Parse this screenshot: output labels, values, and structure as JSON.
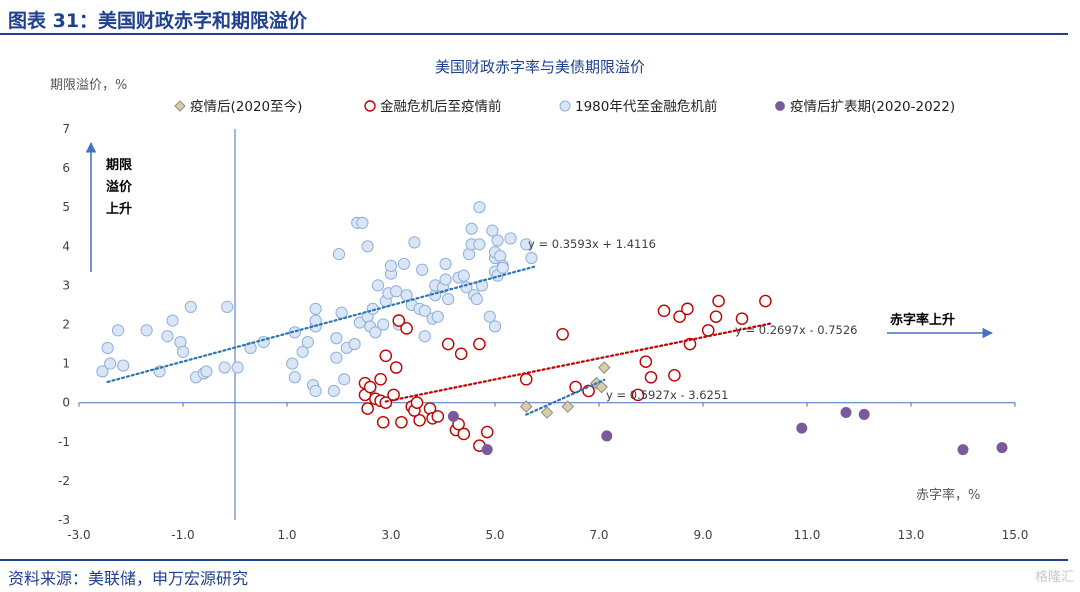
{
  "header_title": "图表 31：美国财政赤字和期限溢价",
  "source": "资料来源：美联储，申万宏源研究",
  "watermark": "格隆汇",
  "colors": {
    "brand": "#1f3f8f",
    "axis": "#4472c4",
    "blue_fill": "#dae6f6",
    "blue_stroke": "#8fb0dc",
    "red": "#c00000",
    "diamond_fill": "#d9cfa3",
    "diamond_stroke": "#8c8c8c",
    "purple": "#7b5a9c",
    "trend_blue": "#2e75b6",
    "trend_red": "#c00000"
  },
  "chart_data": {
    "type": "scatter",
    "title": "美国财政赤字率与美债期限溢价",
    "ylabel": "期限溢价，%",
    "xlabel": "赤字率，%",
    "xlim": [
      -3,
      15
    ],
    "ylim": [
      -3,
      7
    ],
    "xticks": [
      "-3.0",
      "-1.0",
      "1.0",
      "3.0",
      "5.0",
      "7.0",
      "9.0",
      "11.0",
      "13.0",
      "15.0"
    ],
    "yticks": [
      "-3",
      "-2",
      "-1",
      "0",
      "1",
      "2",
      "3",
      "4",
      "5",
      "6",
      "7"
    ],
    "grid": false,
    "legend_position": "top",
    "annotations": {
      "up_label": [
        "期限",
        "溢价",
        "上升"
      ],
      "right_label": "赤字率上升"
    },
    "series": [
      {
        "name": "疫情后(2020至今)",
        "marker": "diamond",
        "points": [
          [
            5.6,
            -0.1
          ],
          [
            6.0,
            -0.25
          ],
          [
            6.4,
            -0.1
          ],
          [
            6.95,
            0.5
          ],
          [
            7.05,
            0.4
          ],
          [
            7.1,
            0.9
          ]
        ],
        "trend": {
          "label": "y = 0.5927x - 3.6251",
          "x_range": [
            5.6,
            7.1
          ]
        }
      },
      {
        "name": "金融危机后至疫情前",
        "marker": "circle-open",
        "points": [
          [
            2.5,
            0.5
          ],
          [
            2.5,
            0.2
          ],
          [
            2.55,
            -0.15
          ],
          [
            2.6,
            0.4
          ],
          [
            2.7,
            0.1
          ],
          [
            2.8,
            0.6
          ],
          [
            2.8,
            0.05
          ],
          [
            2.85,
            -0.5
          ],
          [
            2.9,
            0.0
          ],
          [
            2.9,
            1.2
          ],
          [
            3.05,
            0.2
          ],
          [
            3.1,
            0.9
          ],
          [
            3.15,
            2.1
          ],
          [
            3.2,
            -0.5
          ],
          [
            3.3,
            1.9
          ],
          [
            3.4,
            -0.1
          ],
          [
            3.45,
            -0.2
          ],
          [
            3.5,
            0.0
          ],
          [
            3.55,
            -0.45
          ],
          [
            3.75,
            -0.15
          ],
          [
            3.8,
            -0.4
          ],
          [
            3.9,
            -0.35
          ],
          [
            4.1,
            1.5
          ],
          [
            4.25,
            -0.7
          ],
          [
            4.3,
            -0.55
          ],
          [
            4.35,
            1.25
          ],
          [
            4.4,
            -0.8
          ],
          [
            4.7,
            1.5
          ],
          [
            4.7,
            -1.1
          ],
          [
            4.85,
            -0.75
          ],
          [
            5.6,
            0.6
          ],
          [
            6.3,
            1.75
          ],
          [
            6.55,
            0.4
          ],
          [
            6.8,
            0.3
          ],
          [
            7.75,
            0.2
          ],
          [
            7.9,
            1.05
          ],
          [
            8.0,
            0.65
          ],
          [
            8.25,
            2.35
          ],
          [
            8.45,
            0.7
          ],
          [
            8.55,
            2.2
          ],
          [
            8.7,
            2.4
          ],
          [
            8.75,
            1.5
          ],
          [
            9.1,
            1.85
          ],
          [
            9.25,
            2.2
          ],
          [
            9.3,
            2.6
          ],
          [
            9.75,
            2.15
          ],
          [
            10.2,
            2.6
          ]
        ],
        "trend": {
          "label": "y = 0.2697x - 0.7526",
          "x_range": [
            2.9,
            10.3
          ]
        }
      },
      {
        "name": "1980年代至金融危机前",
        "marker": "circle-filled",
        "points": [
          [
            -2.55,
            0.8
          ],
          [
            -2.45,
            1.4
          ],
          [
            -2.4,
            1.0
          ],
          [
            -2.25,
            1.85
          ],
          [
            -2.15,
            0.95
          ],
          [
            -1.7,
            1.85
          ],
          [
            -1.45,
            0.8
          ],
          [
            -1.3,
            1.7
          ],
          [
            -1.2,
            2.1
          ],
          [
            -1.05,
            1.55
          ],
          [
            -1.0,
            1.3
          ],
          [
            -0.85,
            2.45
          ],
          [
            -0.75,
            0.65
          ],
          [
            -0.6,
            0.75
          ],
          [
            -0.55,
            0.8
          ],
          [
            -0.2,
            0.9
          ],
          [
            -0.15,
            2.45
          ],
          [
            0.05,
            0.9
          ],
          [
            0.3,
            1.4
          ],
          [
            0.55,
            1.55
          ],
          [
            1.1,
            1.0
          ],
          [
            1.15,
            0.65
          ],
          [
            1.15,
            1.8
          ],
          [
            1.3,
            1.3
          ],
          [
            1.4,
            1.55
          ],
          [
            1.5,
            0.45
          ],
          [
            1.55,
            1.95
          ],
          [
            1.55,
            2.1
          ],
          [
            1.55,
            2.4
          ],
          [
            1.55,
            0.3
          ],
          [
            1.9,
            0.3
          ],
          [
            1.95,
            1.65
          ],
          [
            1.95,
            1.15
          ],
          [
            2.0,
            3.8
          ],
          [
            2.05,
            2.3
          ],
          [
            2.1,
            0.6
          ],
          [
            2.15,
            1.4
          ],
          [
            2.3,
            1.5
          ],
          [
            2.35,
            4.6
          ],
          [
            2.4,
            2.05
          ],
          [
            2.45,
            4.6
          ],
          [
            2.55,
            4.0
          ],
          [
            2.55,
            2.2
          ],
          [
            2.6,
            1.95
          ],
          [
            2.6,
            0.35
          ],
          [
            2.65,
            2.4
          ],
          [
            2.7,
            1.8
          ],
          [
            2.75,
            3.0
          ],
          [
            2.85,
            2.0
          ],
          [
            2.9,
            2.6
          ],
          [
            2.95,
            2.8
          ],
          [
            3.0,
            3.3
          ],
          [
            3.0,
            3.5
          ],
          [
            3.1,
            2.85
          ],
          [
            3.15,
            2.0
          ],
          [
            3.25,
            3.55
          ],
          [
            3.3,
            2.75
          ],
          [
            3.4,
            2.5
          ],
          [
            3.45,
            4.1
          ],
          [
            3.55,
            2.4
          ],
          [
            3.6,
            3.4
          ],
          [
            3.65,
            1.7
          ],
          [
            3.65,
            2.35
          ],
          [
            3.8,
            2.15
          ],
          [
            3.85,
            2.75
          ],
          [
            3.85,
            3.0
          ],
          [
            3.9,
            2.2
          ],
          [
            4.0,
            2.95
          ],
          [
            4.05,
            3.55
          ],
          [
            4.05,
            3.15
          ],
          [
            4.1,
            2.65
          ],
          [
            4.3,
            3.2
          ],
          [
            4.4,
            3.25
          ],
          [
            4.45,
            2.95
          ],
          [
            4.5,
            3.8
          ],
          [
            4.55,
            4.05
          ],
          [
            4.55,
            4.45
          ],
          [
            4.6,
            2.75
          ],
          [
            4.65,
            2.65
          ],
          [
            4.7,
            4.05
          ],
          [
            4.7,
            5.0
          ],
          [
            4.75,
            3.0
          ],
          [
            4.9,
            2.2
          ],
          [
            4.95,
            4.4
          ],
          [
            5.0,
            1.95
          ],
          [
            5.0,
            3.7
          ],
          [
            5.0,
            3.85
          ],
          [
            5.0,
            3.35
          ],
          [
            5.05,
            4.15
          ],
          [
            5.05,
            3.25
          ],
          [
            5.1,
            3.75
          ],
          [
            5.15,
            3.5
          ],
          [
            5.15,
            3.45
          ],
          [
            5.3,
            4.2
          ],
          [
            5.6,
            4.05
          ],
          [
            5.7,
            3.7
          ]
        ],
        "trend": {
          "label": "y = 0.3593x + 1.4116",
          "x_range": [
            -2.45,
            5.75
          ]
        }
      },
      {
        "name": "疫情后扩表期(2020-2022)",
        "marker": "circle-dark",
        "points": [
          [
            4.2,
            -0.35
          ],
          [
            4.85,
            -1.2
          ],
          [
            7.15,
            -0.85
          ],
          [
            10.9,
            -0.65
          ],
          [
            11.75,
            -0.25
          ],
          [
            12.1,
            -0.3
          ],
          [
            14.0,
            -1.2
          ],
          [
            14.75,
            -1.15
          ]
        ]
      }
    ]
  }
}
